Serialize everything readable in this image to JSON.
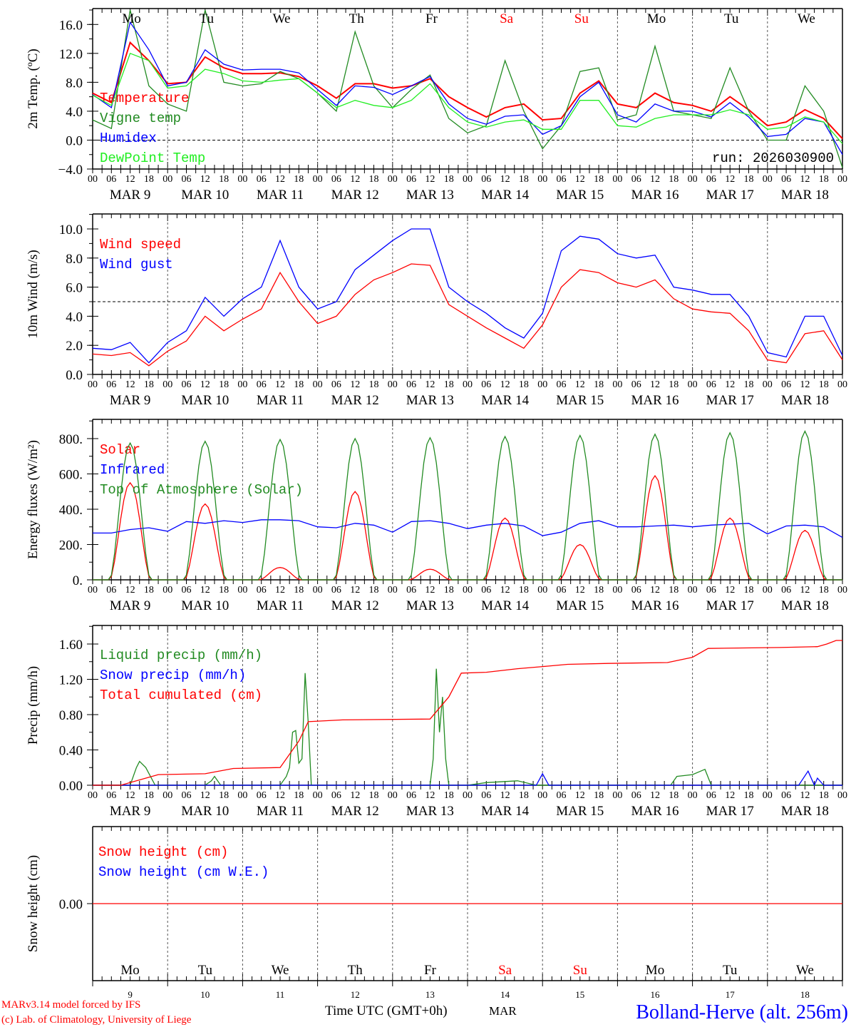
{
  "colors": {
    "red": "#ff0000",
    "green": "#228b22",
    "blue": "#0000ff",
    "lime": "#22ee22",
    "black": "#000000"
  },
  "hours_labels": [
    "00",
    "06",
    "12",
    "18"
  ],
  "dates": [
    "MAR  9",
    "MAR 10",
    "MAR 11",
    "MAR 12",
    "MAR 13",
    "MAR 14",
    "MAR 15",
    "MAR 16",
    "MAR 17",
    "MAR 18"
  ],
  "day_names": [
    "Mo",
    "Tu",
    "We",
    "Th",
    "Fr",
    "Sa",
    "Su",
    "Mo",
    "Tu",
    "We"
  ],
  "weekend_days": [
    5,
    6
  ],
  "day_numbers": [
    "9",
    "10",
    "11",
    "12",
    "13",
    "14",
    "15",
    "16",
    "17",
    "18"
  ],
  "footer": {
    "credit1": "MARv3.14 model forced by IFS",
    "credit2": "(c) Lab. of Climatology, University of Liege",
    "xlabel": "Time UTC (GMT+0h)",
    "month": "MAR",
    "station": "Bolland-Herve (alt. 256m)"
  },
  "chart_data": [
    {
      "type": "line",
      "ylabel": "2m Temp. (ºC)",
      "ylim": [
        -4,
        18.2
      ],
      "yticks": [
        "16.0",
        "12.0",
        "8.0",
        "4.0",
        "0.0",
        "−4.0"
      ],
      "ytick_values": [
        16,
        12,
        8,
        4,
        0,
        -4
      ],
      "refline": 0,
      "annotation": "run: 2026030900",
      "x_step_hours": 6,
      "series": [
        {
          "name": "Temperature",
          "color": "red",
          "values": [
            6.5,
            5.2,
            13.5,
            11.0,
            7.8,
            8.0,
            11.5,
            10.0,
            9.2,
            9.2,
            9.3,
            8.8,
            7.5,
            5.8,
            7.8,
            7.8,
            7.2,
            7.5,
            8.5,
            6.0,
            4.5,
            3.2,
            4.5,
            5.0,
            2.8,
            3.0,
            6.5,
            8.2,
            5.0,
            4.5,
            6.5,
            5.2,
            4.8,
            4.0,
            6.0,
            4.2,
            2.0,
            2.5,
            4.2,
            3.0,
            0.2
          ]
        },
        {
          "name": "Vigne temp",
          "color": "green",
          "values": [
            2.8,
            1.6,
            18,
            7.5,
            5,
            4,
            18,
            8,
            7.5,
            7.8,
            9.5,
            8.5,
            6.5,
            4.0,
            15,
            7.5,
            4.5,
            7.0,
            9.0,
            3.0,
            1.0,
            2.0,
            11,
            4.0,
            -1.2,
            2.0,
            9.5,
            10,
            2.8,
            3.5,
            13,
            4.0,
            3.5,
            3.0,
            10,
            4.0,
            0,
            0,
            7.5,
            4.0,
            -3.8
          ]
        },
        {
          "name": "Humidex",
          "color": "blue",
          "values": [
            6.3,
            4.5,
            16.3,
            12.5,
            7.5,
            8.0,
            12.5,
            10.5,
            9.7,
            9.8,
            9.8,
            9.3,
            7.0,
            4.8,
            7.5,
            7.3,
            6.3,
            7.5,
            8.8,
            5.0,
            3.0,
            2.2,
            3.3,
            3.5,
            0.8,
            2.0,
            6.0,
            8.0,
            3.5,
            2.5,
            5.0,
            4.0,
            4.0,
            3.2,
            5.2,
            3.2,
            0.5,
            0.8,
            3.0,
            2.5,
            -2.0
          ]
        },
        {
          "name": "DewPoint Temp",
          "color": "lime",
          "values": [
            6.2,
            4.8,
            12.0,
            11.0,
            7.2,
            7.5,
            9.8,
            9.2,
            8.2,
            8.0,
            8.3,
            8.5,
            6.5,
            4.5,
            5.5,
            4.8,
            4.5,
            5.5,
            7.8,
            4.5,
            2.5,
            1.8,
            2.5,
            2.8,
            1.5,
            1.5,
            5.5,
            5.5,
            2.0,
            1.8,
            3.0,
            3.5,
            3.5,
            3.5,
            4.2,
            3.5,
            1.5,
            1.8,
            3.2,
            2.5,
            -0.5
          ]
        }
      ]
    },
    {
      "type": "line",
      "ylabel": "10m Wind (m/s)",
      "ylim": [
        0,
        11.03
      ],
      "yticks": [
        "10.0",
        "8.0",
        "6.0",
        "4.0",
        "2.0",
        "0.0"
      ],
      "ytick_values": [
        10,
        8,
        6,
        4,
        2,
        0
      ],
      "refline": 5,
      "x_step_hours": 6,
      "series": [
        {
          "name": "Wind speed",
          "color": "red",
          "values": [
            1.4,
            1.3,
            1.5,
            0.6,
            1.6,
            2.3,
            4.0,
            3.0,
            3.8,
            4.5,
            7.0,
            5.0,
            3.5,
            4.0,
            5.5,
            6.5,
            7.0,
            7.6,
            7.5,
            4.8,
            4.0,
            3.2,
            2.5,
            1.8,
            3.4,
            6.0,
            7.2,
            7.0,
            6.3,
            6.0,
            6.5,
            5.2,
            4.5,
            4.3,
            4.2,
            3.0,
            1.0,
            0.8,
            2.8,
            3.0,
            1.0
          ]
        },
        {
          "name": "Wind gust",
          "color": "blue",
          "values": [
            1.8,
            1.7,
            2.2,
            0.8,
            2.2,
            3.0,
            5.3,
            4.0,
            5.2,
            6.0,
            9.2,
            6.0,
            4.5,
            5.0,
            7.2,
            8.2,
            9.2,
            10.0,
            10.0,
            6.0,
            5.0,
            4.2,
            3.2,
            2.5,
            4.2,
            8.5,
            9.5,
            9.3,
            8.3,
            8.0,
            8.2,
            6.0,
            5.8,
            5.5,
            5.5,
            4.0,
            1.5,
            1.2,
            4.0,
            4.0,
            1.3
          ]
        }
      ]
    },
    {
      "type": "line",
      "ylabel": "Energy fluxes (W/m²)",
      "ylim": [
        0,
        909
      ],
      "yticks": [
        "800.",
        "600.",
        "400.",
        "200.",
        "0."
      ],
      "ytick_values": [
        800,
        600,
        400,
        200,
        0
      ],
      "series": [
        {
          "name": "Solar",
          "color": "red",
          "daily_peak": [
            550,
            430,
            70,
            500,
            60,
            350,
            200,
            590,
            350,
            280
          ]
        },
        {
          "name": "Infrared",
          "color": "blue",
          "x_step_hours": 6,
          "values": [
            265,
            265,
            285,
            295,
            275,
            330,
            320,
            335,
            325,
            340,
            340,
            335,
            300,
            295,
            320,
            310,
            270,
            330,
            335,
            320,
            290,
            310,
            320,
            305,
            250,
            270,
            320,
            335,
            300,
            300,
            305,
            310,
            300,
            310,
            315,
            320,
            260,
            305,
            310,
            300,
            240
          ]
        },
        {
          "name": "Top of Atmosphere (Solar)",
          "color": "green",
          "daily_peak": [
            775,
            785,
            795,
            800,
            805,
            812,
            818,
            825,
            833,
            842
          ]
        }
      ]
    },
    {
      "type": "line",
      "ylabel": "Precip (mm/h)",
      "ylim": [
        0,
        1.81
      ],
      "yticks": [
        "1.60",
        "1.20",
        "0.80",
        "0.40",
        "0.00"
      ],
      "ytick_values": [
        1.6,
        1.2,
        0.8,
        0.4,
        0
      ],
      "series": [
        {
          "name": "Liquid precip (mm/h)",
          "color": "green",
          "points": [
            [
              0,
              0
            ],
            [
              12,
              0
            ],
            [
              14,
              0.2
            ],
            [
              15,
              0.27
            ],
            [
              17,
              0.2
            ],
            [
              20,
              0
            ],
            [
              36,
              0
            ],
            [
              38,
              0.05
            ],
            [
              39,
              0.1
            ],
            [
              41,
              0
            ],
            [
              60,
              0
            ],
            [
              62,
              0.1
            ],
            [
              63,
              0.2
            ],
            [
              64,
              0.6
            ],
            [
              65,
              0.62
            ],
            [
              66,
              0.25
            ],
            [
              67,
              0.3
            ],
            [
              68,
              1.27
            ],
            [
              69,
              0.7
            ],
            [
              70,
              0
            ],
            [
              108,
              0
            ],
            [
              109,
              0.3
            ],
            [
              110,
              1.32
            ],
            [
              111,
              0.6
            ],
            [
              112,
              1.0
            ],
            [
              113,
              0.3
            ],
            [
              114,
              0
            ],
            [
              120,
              0
            ],
            [
              126,
              0.03
            ],
            [
              136,
              0.05
            ],
            [
              142,
              0
            ],
            [
              185,
              0
            ],
            [
              187,
              0.1
            ],
            [
              192,
              0.12
            ],
            [
              196,
              0.18
            ],
            [
              198,
              0
            ],
            [
              240,
              0
            ]
          ]
        },
        {
          "name": "Snow precip (mm/h)",
          "color": "blue",
          "points": [
            [
              0,
              0
            ],
            [
              142,
              0
            ],
            [
              144,
              0.13
            ],
            [
              146,
              0
            ],
            [
              226,
              0
            ],
            [
              229,
              0.16
            ],
            [
              231,
              0
            ],
            [
              232,
              0.08
            ],
            [
              234,
              0
            ],
            [
              240,
              0
            ]
          ]
        },
        {
          "name": "Total cumulated (cm)",
          "color": "red",
          "points": [
            [
              0,
              0
            ],
            [
              9,
              0
            ],
            [
              21,
              0.12
            ],
            [
              36,
              0.13
            ],
            [
              45,
              0.19
            ],
            [
              60,
              0.2
            ],
            [
              64,
              0.4
            ],
            [
              66,
              0.5
            ],
            [
              69,
              0.72
            ],
            [
              80,
              0.74
            ],
            [
              108,
              0.75
            ],
            [
              114,
              1.0
            ],
            [
              118,
              1.27
            ],
            [
              126,
              1.28
            ],
            [
              136,
              1.32
            ],
            [
              146,
              1.35
            ],
            [
              152,
              1.37
            ],
            [
              165,
              1.38
            ],
            [
              184,
              1.39
            ],
            [
              192,
              1.45
            ],
            [
              197,
              1.55
            ],
            [
              220,
              1.56
            ],
            [
              232,
              1.57
            ],
            [
              235,
              1.6
            ],
            [
              238,
              1.64
            ],
            [
              240,
              1.64
            ]
          ]
        }
      ]
    },
    {
      "type": "line",
      "ylabel": "Snow height (cm)",
      "ylim": [
        -1,
        1
      ],
      "yticks": [
        "0.00"
      ],
      "ytick_values": [
        0
      ],
      "series": [
        {
          "name": "Snow height (cm)",
          "color": "red",
          "points": [
            [
              0,
              0
            ],
            [
              240,
              0
            ]
          ]
        },
        {
          "name": "Snow height (cm W.E.)",
          "color": "blue",
          "points": []
        }
      ]
    }
  ]
}
